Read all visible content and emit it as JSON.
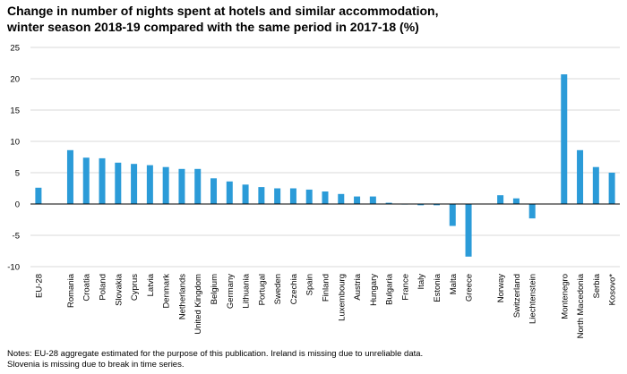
{
  "title": {
    "line1": "Change in number of nights spent at hotels and similar accommodation,",
    "line2": "winter season 2018-19 compared with the same period in 2017-18 (%)"
  },
  "notes": {
    "line1": "Notes:  EU-28 aggregate estimated for the purpose of this publication. Ireland is missing due to unreliable data.",
    "line2": "Slovenia is missing due to break in time series."
  },
  "colors": {
    "bar": "#2B9BD8",
    "grid": "#d9d9d9",
    "axis": "#000000"
  },
  "chart_data": {
    "type": "bar",
    "title": "Change in number of nights spent at hotels and similar accommodation, winter season 2018-19 compared with the same period in 2017-18 (%)",
    "xlabel": "",
    "ylabel": "",
    "ylim": [
      -10,
      25
    ],
    "yticks": [
      -10,
      -5,
      0,
      5,
      10,
      15,
      20,
      25
    ],
    "grid": true,
    "categories": [
      "EU-28",
      "",
      "Romania",
      "Croatia",
      "Poland",
      "Slovakia",
      "Cyprus",
      "Latvia",
      "Denmark",
      "Netherlands",
      "United Kingdom",
      "Belgium",
      "Germany",
      "Lithuania",
      "Portugal",
      "Sweden",
      "Czechia",
      "Spain",
      "Finland",
      "Luxembourg",
      "Austria",
      "Hungary",
      "Bulgaria",
      "France",
      "Italy",
      "Estonia",
      "Malta",
      "Greece",
      "",
      "Norway",
      "Switzerland",
      "Liechtenstein",
      "",
      "Montenegro",
      "North Macedonia",
      "Serbia",
      "Kosovo*"
    ],
    "values": [
      2.6,
      null,
      8.6,
      7.4,
      7.3,
      6.6,
      6.4,
      6.2,
      5.9,
      5.6,
      5.6,
      4.1,
      3.6,
      3.1,
      2.7,
      2.5,
      2.5,
      2.3,
      2.0,
      1.6,
      1.2,
      1.2,
      0.2,
      0.0,
      -0.2,
      -0.2,
      -3.5,
      -8.4,
      null,
      1.4,
      0.9,
      -2.3,
      null,
      20.7,
      8.6,
      5.9,
      5.0
    ]
  }
}
